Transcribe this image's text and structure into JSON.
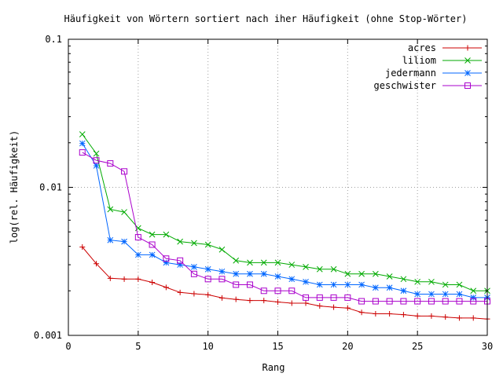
{
  "chart_data": {
    "type": "line",
    "title": "Häufigkeit von Wörtern sortiert nach iher Häufigkeit (ohne Stop-Wörter)",
    "xlabel": "Rang",
    "ylabel": "log(rel. Häufigkeit)",
    "xlim": [
      0,
      30
    ],
    "ylim": [
      0.001,
      0.1
    ],
    "y_scale": "log",
    "x_ticks": [
      0,
      5,
      10,
      15,
      20,
      25,
      30
    ],
    "y_ticks": [
      0.001,
      0.01,
      0.1
    ],
    "x_tick_labels": [
      "0",
      "5",
      "10",
      "15",
      "20",
      "25",
      "30"
    ],
    "y_tick_labels": [
      "0.001",
      "0.01",
      "0.1"
    ],
    "grid": true,
    "legend_position": "top-right",
    "x": [
      1,
      2,
      3,
      4,
      5,
      6,
      7,
      8,
      9,
      10,
      11,
      12,
      13,
      14,
      15,
      16,
      17,
      18,
      19,
      20,
      21,
      22,
      23,
      24,
      25,
      26,
      27,
      28,
      29,
      30
    ],
    "series": [
      {
        "name": "acres",
        "color": "#cc0000",
        "marker": "plus",
        "values": [
          0.00395,
          0.00305,
          0.00243,
          0.0024,
          0.0024,
          0.00228,
          0.00211,
          0.00195,
          0.00191,
          0.00188,
          0.00179,
          0.00175,
          0.00172,
          0.00172,
          0.00168,
          0.00165,
          0.00165,
          0.00158,
          0.00155,
          0.00153,
          0.00143,
          0.0014,
          0.0014,
          0.00138,
          0.00135,
          0.00135,
          0.00133,
          0.00131,
          0.00131,
          0.00129
        ]
      },
      {
        "name": "liliom",
        "color": "#00aa00",
        "marker": "cross",
        "values": [
          0.0228,
          0.0169,
          0.0071,
          0.0068,
          0.0053,
          0.0048,
          0.0048,
          0.0043,
          0.0042,
          0.0041,
          0.0038,
          0.0032,
          0.0031,
          0.0031,
          0.0031,
          0.003,
          0.0029,
          0.0028,
          0.0028,
          0.0026,
          0.0026,
          0.0026,
          0.0025,
          0.0024,
          0.0023,
          0.0023,
          0.0022,
          0.0022,
          0.002,
          0.002
        ]
      },
      {
        "name": "jedermann",
        "color": "#0066ff",
        "marker": "star",
        "values": [
          0.0198,
          0.014,
          0.0044,
          0.0043,
          0.0035,
          0.0035,
          0.0031,
          0.003,
          0.0029,
          0.0028,
          0.0027,
          0.0026,
          0.0026,
          0.0026,
          0.0025,
          0.0024,
          0.0023,
          0.0022,
          0.0022,
          0.0022,
          0.0022,
          0.0021,
          0.0021,
          0.002,
          0.0019,
          0.0019,
          0.0019,
          0.0019,
          0.0018,
          0.0018
        ]
      },
      {
        "name": "geschwister",
        "color": "#aa00cc",
        "marker": "square",
        "values": [
          0.0172,
          0.0152,
          0.0145,
          0.0128,
          0.0046,
          0.0041,
          0.0033,
          0.0032,
          0.0026,
          0.0024,
          0.0024,
          0.0022,
          0.0022,
          0.002,
          0.002,
          0.002,
          0.0018,
          0.0018,
          0.0018,
          0.0018,
          0.0017,
          0.0017,
          0.0017,
          0.0017,
          0.0017,
          0.0017,
          0.0017,
          0.0017,
          0.0017,
          0.0017
        ]
      }
    ]
  }
}
